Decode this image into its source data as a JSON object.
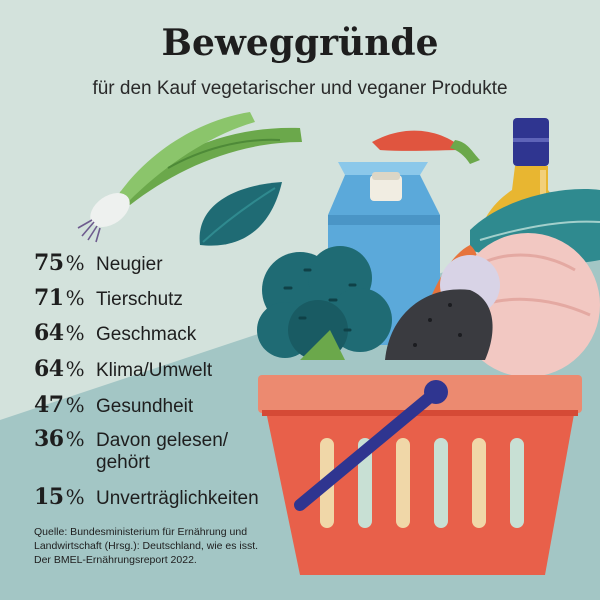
{
  "header": {
    "title": "Beweggründe",
    "subtitle": "für den Kauf vegetarischer und veganer Produkte"
  },
  "chart_data": {
    "type": "table",
    "title": "Beweggründe",
    "subtitle": "für den Kauf vegetarischer und veganer Produkte",
    "unit": "%",
    "categories": [
      "Neugier",
      "Tierschutz",
      "Geschmack",
      "Klima/Umwelt",
      "Gesundheit",
      "Davon gelesen/ gehört",
      "Unverträglichkeiten"
    ],
    "values": [
      75,
      71,
      64,
      64,
      47,
      36,
      15
    ],
    "rows": [
      {
        "value": "75",
        "unit": "%",
        "label": "Neugier"
      },
      {
        "value": "71",
        "unit": "%",
        "label": "Tierschutz"
      },
      {
        "value": "64",
        "unit": "%",
        "label": "Geschmack"
      },
      {
        "value": "64",
        "unit": "%",
        "label": "Klima/Umwelt"
      },
      {
        "value": "47",
        "unit": "%",
        "label": "Gesundheit"
      },
      {
        "value": "36",
        "unit": "%",
        "label": "Davon gelesen/\ngehört"
      },
      {
        "value": "15",
        "unit": "%",
        "label": "Unverträglichkeiten"
      }
    ]
  },
  "footer": {
    "source_line1": "Quelle: Bundesministerium für Ernährung und",
    "source_line2": "Landwirtschaft (Hrsg.): Deutschland, wie es isst.",
    "source_line3": "Der BMEL-Ernährungsreport 2022."
  },
  "colors": {
    "background_light": "#d3e2dc",
    "background_dark": "#a3c6c5",
    "basket": "#e8604a",
    "basket_rim": "#ec8a70",
    "handle": "#2f3590",
    "milk_carton": "#5ba9da",
    "bottle": "#e8b631",
    "leek": "#6ba84b",
    "broccoli": "#1f6b74",
    "text": "#1e1e1e"
  },
  "icons": [
    "leek-icon",
    "spinach-leaf-icon",
    "chili-icon",
    "milk-carton-icon",
    "oil-bottle-icon",
    "broccoli-icon",
    "carrot-icon",
    "eggplant-icon",
    "cabbage-icon",
    "basket-icon"
  ]
}
